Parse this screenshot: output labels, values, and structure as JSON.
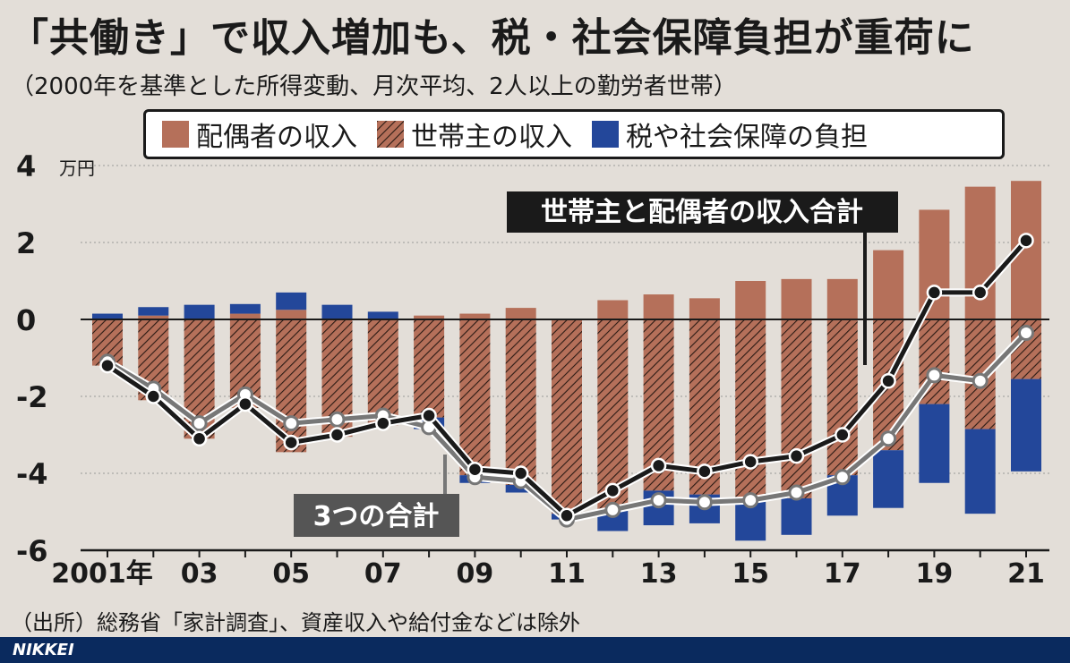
{
  "header": {
    "title": "「共働き」で収入増加も、税・社会保障負担が重荷に",
    "subtitle": "（2000年を基準とした所得変動、月次平均、2人以上の勤労者世帯）"
  },
  "legend": {
    "items": [
      {
        "label": "配偶者の収入",
        "pattern": "solid",
        "color": "#b5705a"
      },
      {
        "label": "世帯主の収入",
        "pattern": "hatched",
        "color": "#b5705a"
      },
      {
        "label": "税や社会保障の負担",
        "pattern": "solid",
        "color": "#23479a"
      }
    ]
  },
  "annotations": {
    "income_total": "世帯主と配偶者の収入合計",
    "three_total": "3つの合計"
  },
  "source": "（出所）総務省「家計調査」、資産収入や給付金などは除外",
  "footer": {
    "brand": "NIKKEI"
  },
  "chart_data": {
    "type": "bar",
    "unit": "万円",
    "ylim": [
      -6,
      4
    ],
    "yticks": [
      4,
      2,
      0,
      -2,
      -4,
      -6
    ],
    "ytick_labels": [
      "4",
      "2",
      "0",
      "-2",
      "-4",
      "-6"
    ],
    "years": [
      2001,
      2002,
      2003,
      2004,
      2005,
      2006,
      2007,
      2008,
      2009,
      2010,
      2011,
      2012,
      2013,
      2014,
      2015,
      2016,
      2017,
      2018,
      2019,
      2020,
      2021
    ],
    "xtick_labels": [
      "2001年",
      "",
      "03",
      "",
      "05",
      "",
      "07",
      "",
      "09",
      "",
      "11",
      "",
      "13",
      "",
      "15",
      "",
      "17",
      "",
      "19",
      "",
      "21"
    ],
    "colors": {
      "income": "#b5705a",
      "tax": "#23479a",
      "income_line": "#1a1a1a",
      "total_line": "#777777"
    },
    "series": [
      {
        "name": "配偶者の収入",
        "values": [
          0.0,
          0.1,
          0.0,
          0.15,
          0.25,
          0.0,
          0.0,
          0.1,
          0.15,
          0.3,
          0.0,
          0.5,
          0.65,
          0.55,
          1.0,
          1.05,
          1.05,
          1.8,
          2.85,
          3.45,
          3.6
        ]
      },
      {
        "name": "世帯主の収入",
        "values": [
          -1.2,
          -2.1,
          -3.1,
          -2.3,
          -3.45,
          -3.05,
          -2.75,
          -2.55,
          -4.05,
          -4.3,
          -5.05,
          -4.95,
          -4.45,
          -4.55,
          -4.7,
          -4.65,
          -4.05,
          -3.4,
          -2.2,
          -2.85,
          -1.55
        ]
      },
      {
        "name": "税や社会保障の負担",
        "values": [
          0.15,
          0.22,
          0.38,
          0.25,
          0.45,
          0.38,
          0.2,
          -0.3,
          -0.2,
          -0.2,
          -0.15,
          -0.55,
          -0.9,
          -0.75,
          -1.05,
          -0.95,
          -1.05,
          -1.5,
          -2.05,
          -2.2,
          -2.4
        ]
      },
      {
        "name": "世帯主と配偶者の収入合計",
        "values": [
          -1.2,
          -2.0,
          -3.1,
          -2.2,
          -3.2,
          -3.0,
          -2.7,
          -2.5,
          -3.9,
          -4.0,
          -5.1,
          -4.45,
          -3.8,
          -3.95,
          -3.7,
          -3.55,
          -3.0,
          -1.6,
          0.7,
          0.7,
          2.05
        ]
      },
      {
        "name": "3つの合計",
        "values": [
          -1.1,
          -1.8,
          -2.7,
          -1.95,
          -2.7,
          -2.6,
          -2.5,
          -2.8,
          -4.1,
          -4.2,
          -5.2,
          -4.95,
          -4.7,
          -4.75,
          -4.7,
          -4.5,
          -4.1,
          -3.1,
          -1.45,
          -1.6,
          -0.35
        ]
      }
    ]
  }
}
